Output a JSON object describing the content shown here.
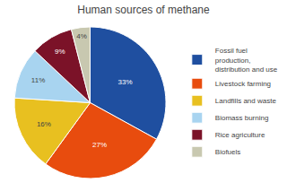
{
  "chart_data": {
    "type": "pie",
    "title": "Human sources of methane",
    "categories": [
      "Fossil fuel\nproduction,\ndistribution and use",
      "Livestock farming",
      "Landfills and waste",
      "Biomass burning",
      "Rice agriculture",
      "Biofuels"
    ],
    "values": [
      33,
      27,
      16,
      11,
      9,
      4
    ],
    "value_labels": [
      "33%",
      "27%",
      "16%",
      "11%",
      "9%",
      "4%"
    ],
    "colors": [
      "#1f4fa0",
      "#e84c0e",
      "#e8c020",
      "#a8d4f0",
      "#7b1228",
      "#c8c8b0"
    ],
    "data_labels": true,
    "legend": "right"
  }
}
